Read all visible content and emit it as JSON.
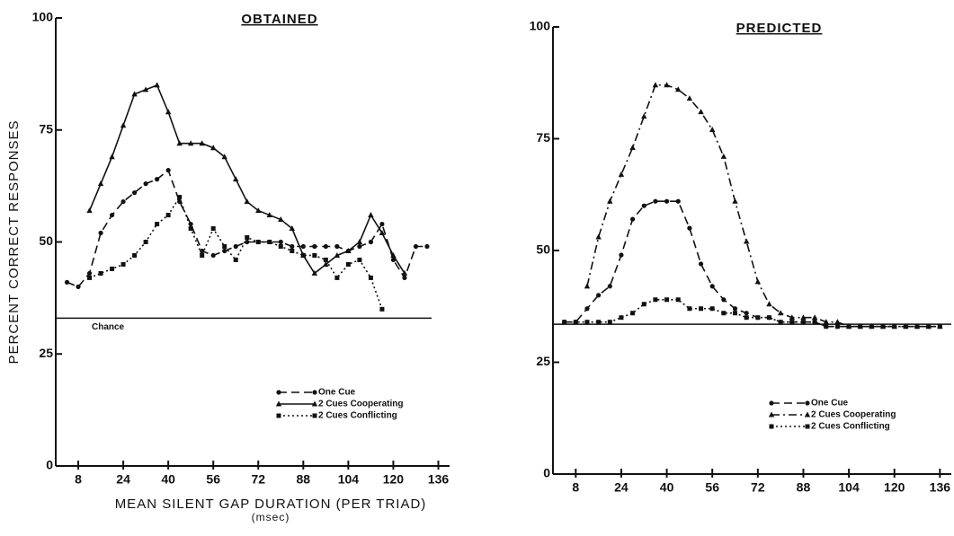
{
  "chart_data": [
    {
      "type": "line",
      "title": "OBTAINED",
      "y_label": "PERCENT CORRECT RESPONSES",
      "x_label": "MEAN SILENT GAP DURATION (PER TRIAD)",
      "x_unit": "(msec)",
      "x": [
        4,
        8,
        12,
        16,
        20,
        24,
        28,
        32,
        36,
        40,
        44,
        48,
        52,
        56,
        60,
        64,
        68,
        72,
        76,
        80,
        84,
        88,
        92,
        96,
        100,
        104,
        108,
        112,
        116,
        120,
        124,
        128,
        132
      ],
      "series": [
        {
          "name": "One Cue",
          "color": "#111111",
          "marker": "circle",
          "dash": "dashed",
          "values": [
            41,
            40,
            43,
            52,
            56,
            59,
            61,
            63,
            64,
            66,
            59,
            54,
            48,
            47,
            48,
            49,
            50,
            50,
            50,
            50,
            49,
            49,
            49,
            49,
            49,
            48,
            49,
            50,
            54,
            46,
            42,
            49,
            49
          ]
        },
        {
          "name": "2 Cues Cooperating",
          "color": "#111111",
          "marker": "triangle",
          "dash": "solid",
          "values": [
            null,
            null,
            57,
            63,
            69,
            76,
            83,
            84,
            85,
            79,
            72,
            72,
            72,
            71,
            69,
            64,
            59,
            57,
            56,
            55,
            53,
            47,
            43,
            45,
            47,
            48,
            50,
            56,
            52,
            47,
            43,
            null,
            null
          ]
        },
        {
          "name": "2 Cues Conflicting",
          "color": "#111111",
          "marker": "square",
          "dash": "dotted",
          "values": [
            null,
            null,
            42,
            43,
            44,
            45,
            47,
            50,
            54,
            56,
            60,
            53,
            47,
            53,
            49,
            46,
            51,
            50,
            50,
            49,
            48,
            47,
            47,
            46,
            42,
            45,
            46,
            42,
            35,
            null,
            null,
            null,
            null
          ]
        }
      ],
      "reference_line": 33,
      "reference_label": "Chance",
      "xlim": [
        0,
        140
      ],
      "xticks": [
        8,
        24,
        40,
        56,
        72,
        88,
        104,
        120,
        136
      ],
      "ylim": [
        0,
        100
      ],
      "yticks": [
        0,
        25,
        50,
        75,
        100
      ],
      "legend": "lower right"
    },
    {
      "type": "line",
      "title": "PREDICTED",
      "x": [
        4,
        8,
        12,
        16,
        20,
        24,
        28,
        32,
        36,
        40,
        44,
        48,
        52,
        56,
        60,
        64,
        68,
        72,
        76,
        80,
        84,
        88,
        92,
        96,
        100,
        104,
        108,
        112,
        116,
        120,
        124,
        128,
        132,
        136
      ],
      "series": [
        {
          "name": "One Cue",
          "color": "#111111",
          "marker": "circle",
          "dash": "dashed",
          "values": [
            34,
            34,
            37,
            40,
            42,
            49,
            57,
            60,
            61,
            61,
            61,
            55,
            47,
            42,
            39,
            37,
            36,
            35,
            35,
            34,
            34,
            34,
            34,
            33,
            33,
            33,
            33,
            33,
            33,
            33,
            33,
            33,
            33,
            33
          ]
        },
        {
          "name": "2 Cues Cooperating",
          "color": "#111111",
          "marker": "triangle",
          "dash": "dashdot",
          "values": [
            null,
            null,
            42,
            53,
            61,
            67,
            73,
            80,
            87,
            87,
            86,
            84,
            81,
            77,
            71,
            61,
            52,
            43,
            38,
            36,
            35,
            35,
            35,
            34,
            34,
            33,
            33,
            33,
            33,
            33,
            33,
            33,
            33,
            33
          ]
        },
        {
          "name": "2 Cues Conflicting",
          "color": "#111111",
          "marker": "square",
          "dash": "dotted",
          "values": [
            34,
            34,
            34,
            34,
            34,
            35,
            36,
            38,
            39,
            39,
            39,
            37,
            37,
            37,
            36,
            36,
            35,
            35,
            35,
            34,
            34,
            34,
            34,
            33,
            33,
            33,
            33,
            33,
            33,
            33,
            33,
            33,
            33,
            33
          ]
        }
      ],
      "reference_line": 33.5,
      "xlim": [
        0,
        140
      ],
      "xticks": [
        8,
        24,
        40,
        56,
        72,
        88,
        104,
        120,
        136
      ],
      "ylim": [
        0,
        100
      ],
      "yticks": [
        0,
        25,
        50,
        75,
        100
      ],
      "legend": "lower right"
    }
  ]
}
